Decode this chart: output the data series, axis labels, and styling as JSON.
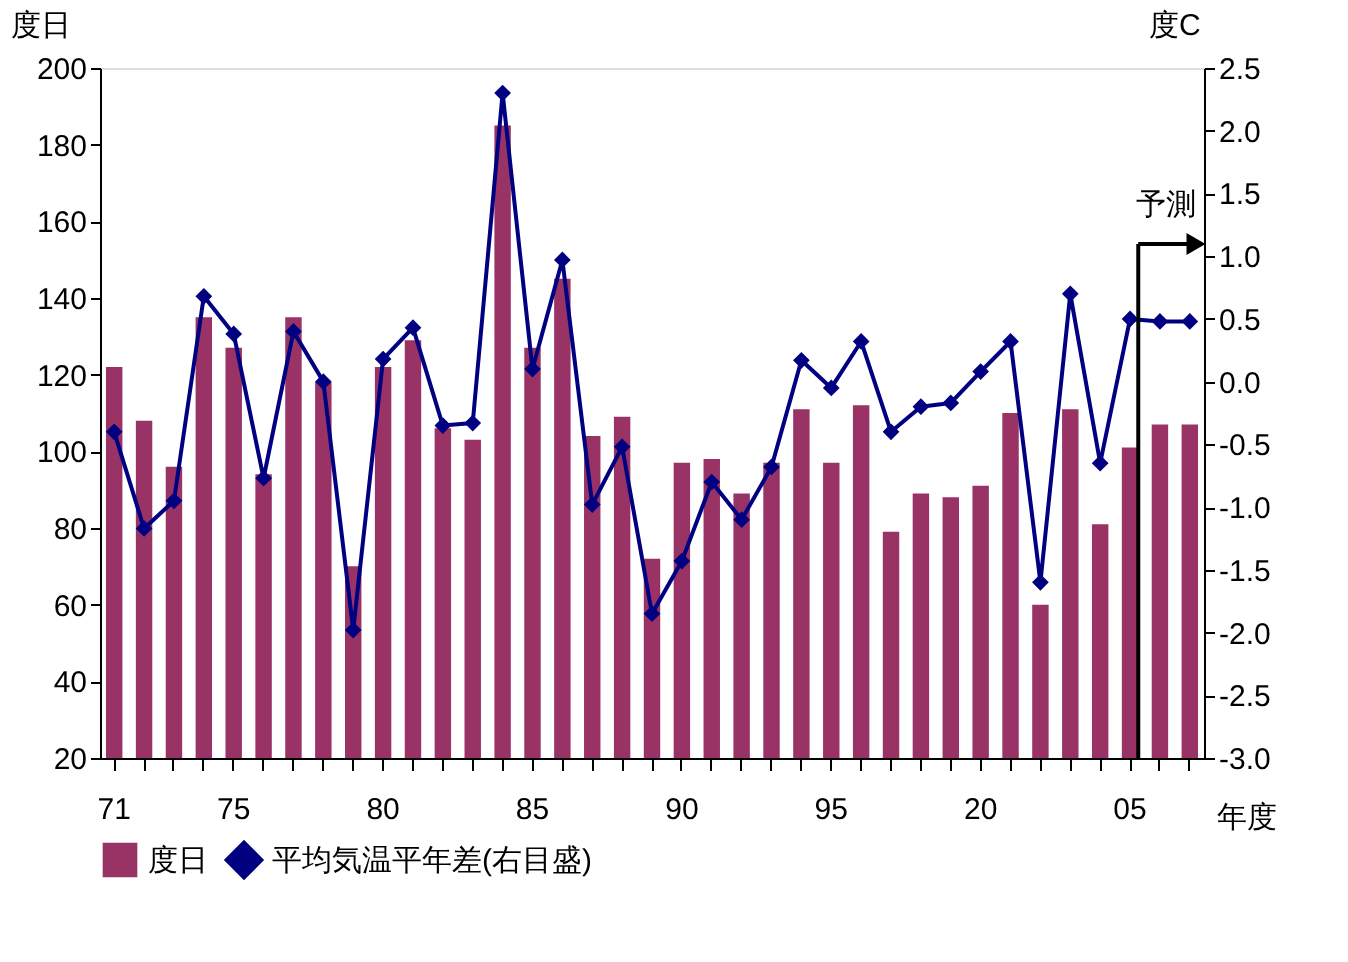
{
  "chart_data": {
    "type": "bar",
    "ylabel": "度日",
    "y2label": "度C",
    "xlabel": "年度",
    "categories": [
      "71",
      null,
      null,
      null,
      "75",
      null,
      null,
      null,
      null,
      "80",
      null,
      null,
      null,
      null,
      "85",
      null,
      null,
      null,
      null,
      "90",
      null,
      null,
      null,
      null,
      "95",
      null,
      null,
      null,
      null,
      "20",
      null,
      null,
      null,
      null,
      "05",
      null,
      null
    ],
    "series": [
      {
        "name": "度日",
        "color": "#993366",
        "values": [
          122,
          108,
          96,
          135,
          127,
          94,
          135,
          118,
          70,
          122,
          129,
          106,
          103,
          185,
          127,
          145,
          104,
          109,
          72,
          97,
          98,
          89,
          97,
          111,
          97,
          112,
          79,
          89,
          88,
          91,
          110,
          60,
          111,
          81,
          101,
          107,
          107
        ]
      },
      {
        "name": "平均気温平年差(右目盛)",
        "type": "line",
        "axis": "y2",
        "color": "#000080",
        "marker": "diamond",
        "line_style": "solid",
        "values": [
          -0.4,
          -1.17,
          -0.95,
          0.68,
          0.38,
          -0.77,
          0.4,
          0.0,
          -1.98,
          0.18,
          0.43,
          -0.35,
          -0.33,
          2.3,
          0.1,
          0.97,
          -0.98,
          -0.52,
          -1.85,
          -1.43,
          -0.8,
          -1.1,
          -0.68,
          0.17,
          -0.05,
          0.32,
          -0.4,
          -0.2,
          -0.17,
          0.08,
          0.32,
          -1.6,
          0.7,
          -0.65,
          0.5,
          0.48,
          0.48
        ]
      }
    ],
    "ylim": [
      20,
      200
    ],
    "yticks": [
      20,
      40,
      60,
      80,
      100,
      120,
      140,
      160,
      180,
      200
    ],
    "y2lim": [
      -3.0,
      2.5
    ],
    "y2ticks": [
      {
        "value": -3,
        "label": "-3.0"
      },
      {
        "value": -2.5,
        "label": "-2.5"
      },
      {
        "value": -2,
        "label": "-2.0"
      },
      {
        "value": -1.5,
        "label": "-1.5"
      },
      {
        "value": -1,
        "label": "-1.0"
      },
      {
        "value": -0.5,
        "label": "-0.5"
      },
      {
        "value": 0,
        "label": "0.0"
      },
      {
        "value": 0.5,
        "label": "0.5"
      },
      {
        "value": 1,
        "label": "1.0"
      },
      {
        "value": 1.5,
        "label": "1.5"
      },
      {
        "value": 2,
        "label": "2.0"
      },
      {
        "value": 2.5,
        "label": "2.5"
      }
    ],
    "ref_lines": [
      {
        "axis": "x",
        "value": "05",
        "label": "予測",
        "color": "#000000"
      }
    ],
    "grid": false,
    "legend": "bottom"
  }
}
